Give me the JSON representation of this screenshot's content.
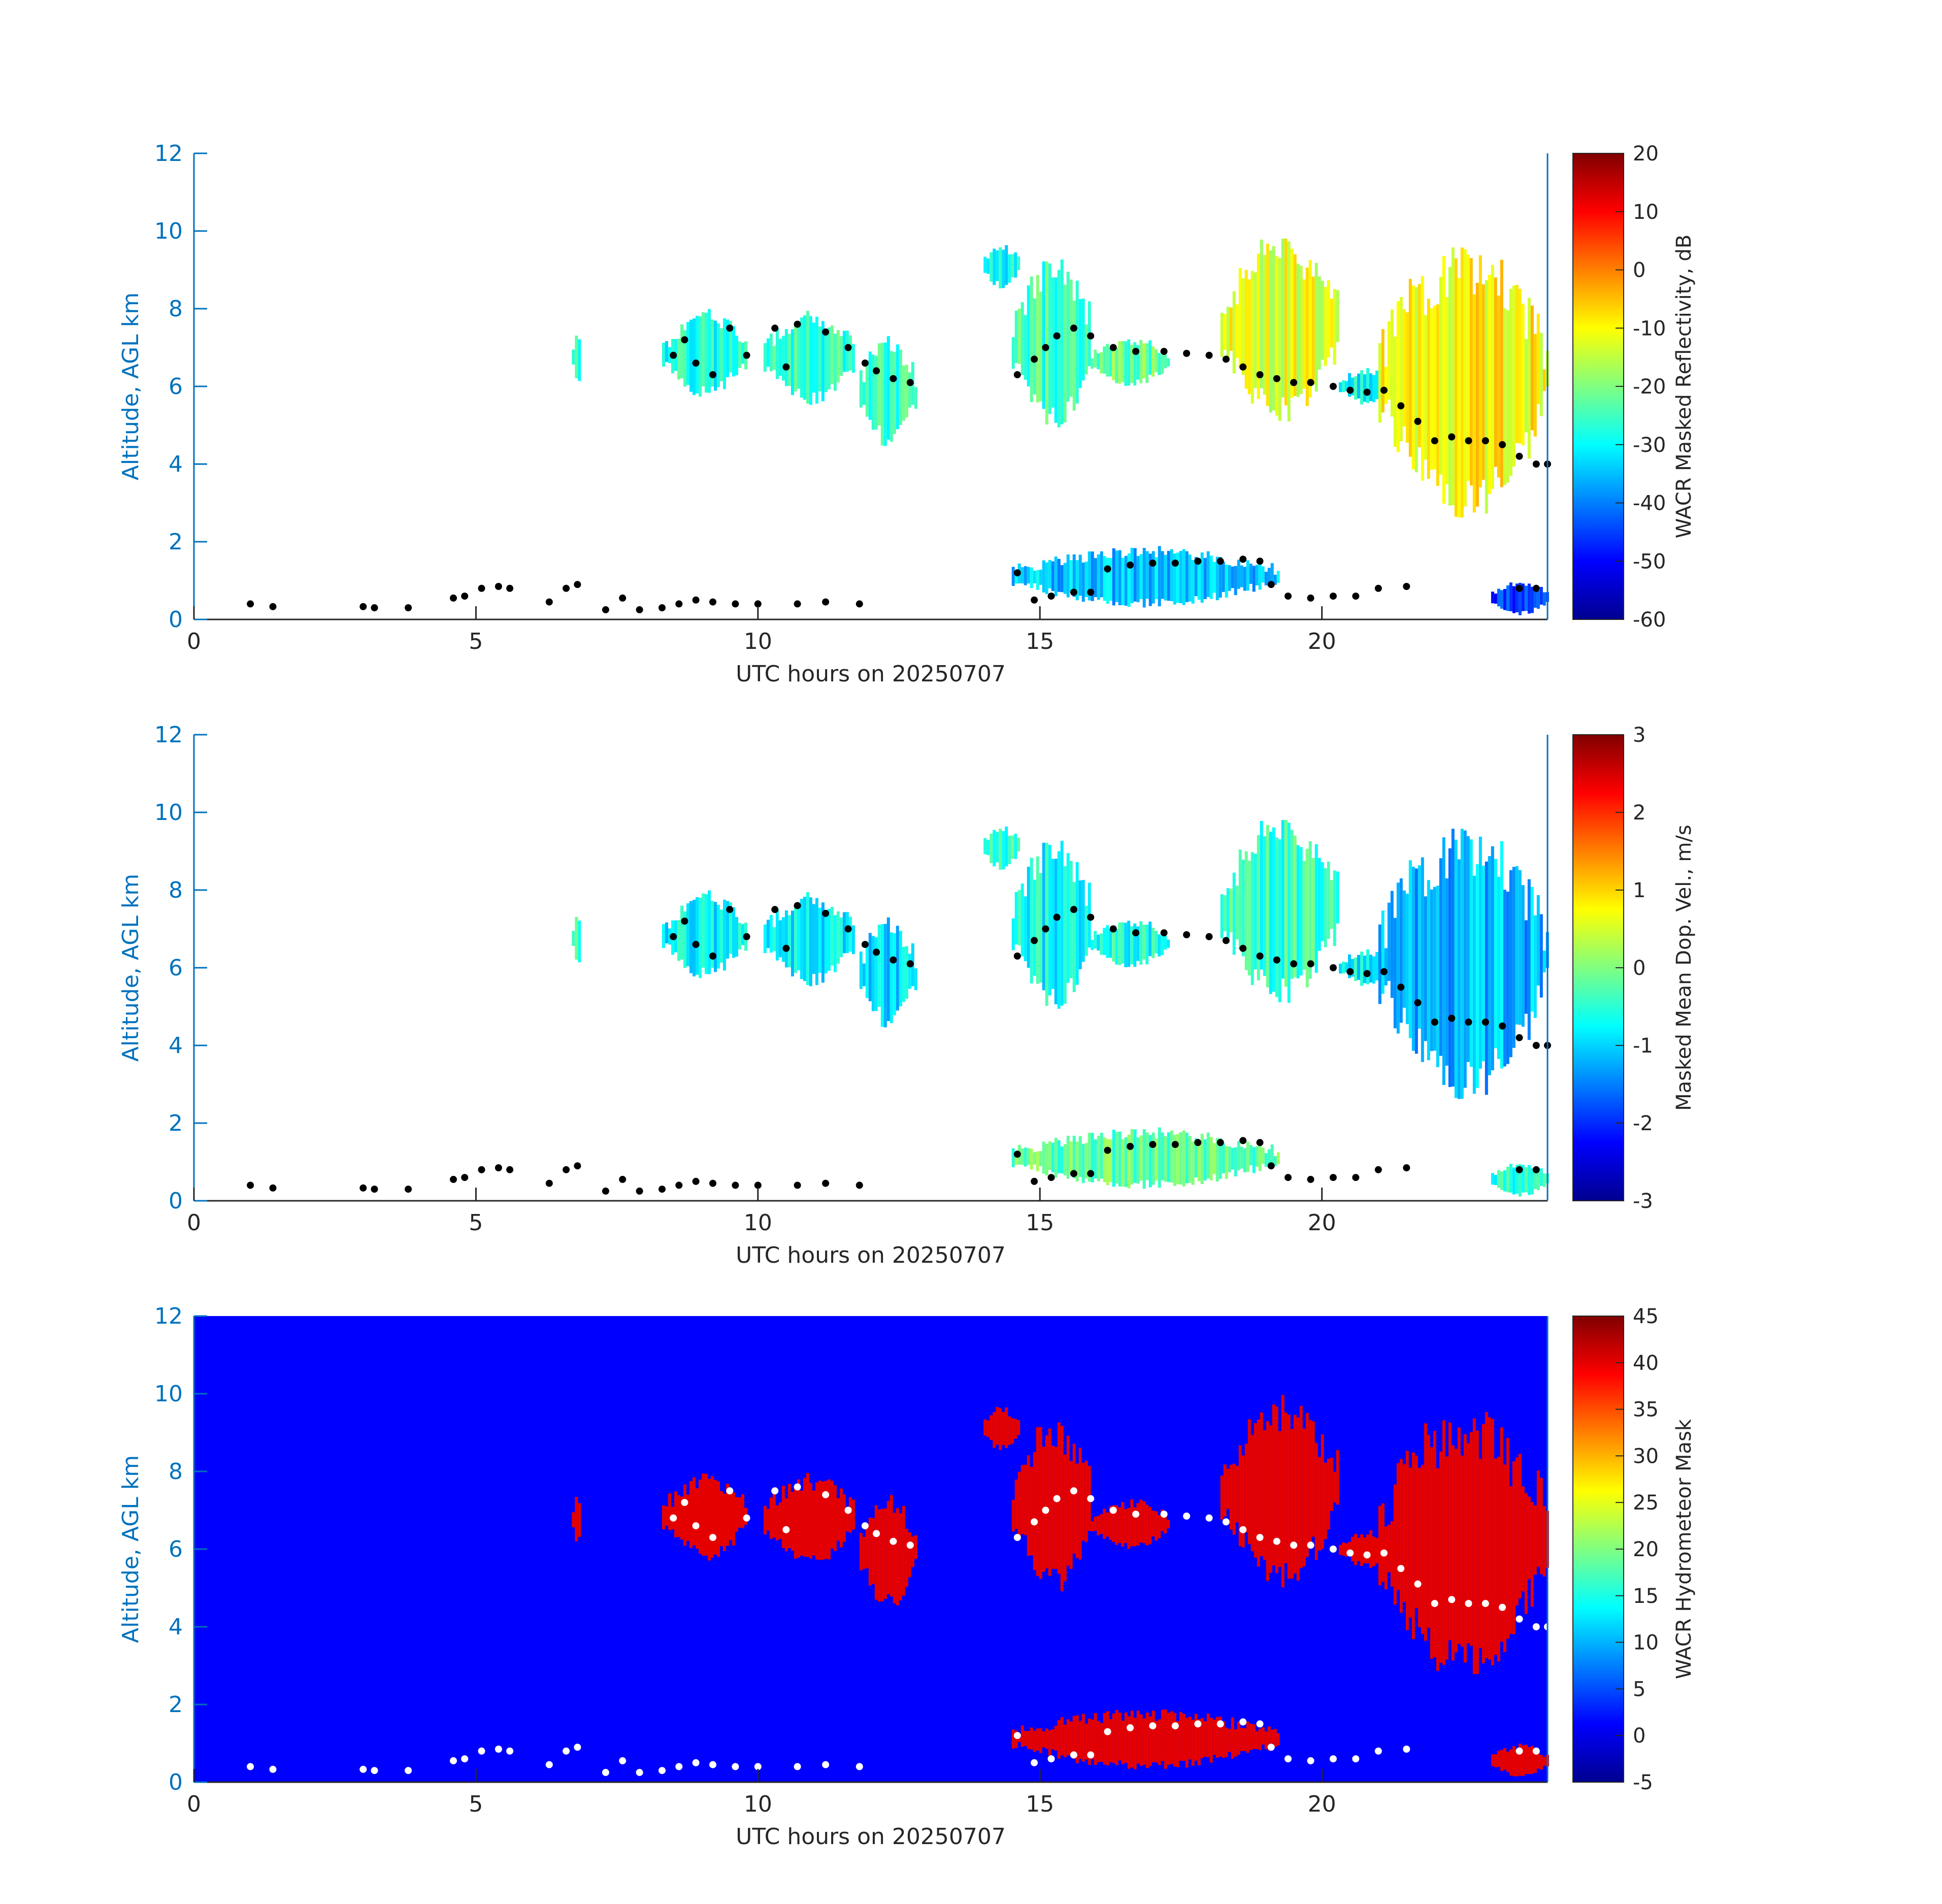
{
  "figure": {
    "panels": [
      {
        "id": "reflectivity",
        "ylabel": "Altitude, AGL km",
        "xlabel": "UTC hours on 20250707",
        "colorbar_label": "WACR Masked Reflectivity, dB",
        "colorbar_ticks": [
          "20",
          "10",
          "0",
          "-10",
          "-20",
          "-30",
          "-40",
          "-50",
          "-60"
        ],
        "background": "#ffffff",
        "marker_color": "#000000"
      },
      {
        "id": "velocity",
        "ylabel": "Altitude, AGL km",
        "xlabel": "UTC hours on 20250707",
        "colorbar_label": "Masked Mean Dop. Vel., m/s",
        "colorbar_ticks": [
          "3",
          "2",
          "1",
          "0",
          "-1",
          "-2",
          "-3"
        ],
        "background": "#ffffff",
        "marker_color": "#000000"
      },
      {
        "id": "mask",
        "ylabel": "Altitude, AGL km",
        "xlabel": "UTC hours on 20250707",
        "colorbar_label": "WACR Hydrometeor Mask",
        "colorbar_ticks": [
          "45",
          "40",
          "35",
          "30",
          "25",
          "20",
          "15",
          "10",
          "5",
          "0",
          "-5"
        ],
        "background": "#0000ff",
        "marker_color": "#ffffff"
      }
    ]
  },
  "chart_data": [
    {
      "type": "heatmap",
      "title": "",
      "xlabel": "UTC hours on 20250707",
      "ylabel": "Altitude, AGL km",
      "xlim": [
        0,
        24
      ],
      "ylim": [
        0,
        12
      ],
      "xticks": [
        "0",
        "5",
        "10",
        "15",
        "20"
      ],
      "yticks": [
        "0",
        "2",
        "4",
        "6",
        "8",
        "10",
        "12"
      ],
      "colorbar": {
        "label": "WACR Masked Reflectivity, dB",
        "range": [
          -60,
          20
        ],
        "colormap": "jet"
      },
      "cloud_regions": [
        {
          "x": [
            6.7,
            6.85
          ],
          "y": [
            6.0,
            7.6
          ],
          "value": -28
        },
        {
          "x": [
            8.3,
            9.8
          ],
          "y": [
            5.7,
            8.0
          ],
          "value": -28
        },
        {
          "x": [
            10.1,
            11.7
          ],
          "y": [
            5.5,
            8.0
          ],
          "value": -26
        },
        {
          "x": [
            11.8,
            12.8
          ],
          "y": [
            4.4,
            7.4
          ],
          "value": -25
        },
        {
          "x": [
            14.0,
            14.6
          ],
          "y": [
            8.5,
            9.7
          ],
          "value": -30
        },
        {
          "x": [
            14.5,
            15.9
          ],
          "y": [
            4.8,
            9.5
          ],
          "value": -25
        },
        {
          "x": [
            15.9,
            17.3
          ],
          "y": [
            6.0,
            7.3
          ],
          "value": -22
        },
        {
          "x": [
            18.2,
            20.3
          ],
          "y": [
            5.0,
            10.0
          ],
          "value": -12
        },
        {
          "x": [
            20.3,
            21.3
          ],
          "y": [
            5.5,
            6.5
          ],
          "value": -30
        },
        {
          "x": [
            21.0,
            24.0
          ],
          "y": [
            2.5,
            9.8
          ],
          "value": -10
        },
        {
          "x": [
            14.5,
            19.2
          ],
          "y": [
            0.3,
            1.9
          ],
          "value": -35
        },
        {
          "x": [
            23.0,
            24.0
          ],
          "y": [
            0.1,
            1.0
          ],
          "value": -45
        }
      ],
      "marker_series": [
        {
          "x": [
            1.0,
            1.4,
            3.0,
            3.2,
            3.8,
            4.6,
            4.8,
            5.1,
            5.4,
            5.6,
            6.3,
            6.6,
            6.8,
            7.3,
            7.6,
            7.9,
            8.3,
            8.6,
            8.9,
            9.2,
            9.6,
            10.0,
            10.7,
            11.2,
            11.8
          ],
          "y": [
            0.4,
            0.33,
            0.33,
            0.3,
            0.3,
            0.55,
            0.6,
            0.8,
            0.85,
            0.8,
            0.45,
            0.8,
            0.9,
            0.25,
            0.55,
            0.25,
            0.3,
            0.4,
            0.5,
            0.45,
            0.4,
            0.4,
            0.4,
            0.45,
            0.4
          ]
        },
        {
          "x": [
            8.5,
            8.7,
            8.9,
            9.2,
            9.5,
            9.8,
            10.3,
            10.5,
            10.7,
            11.2,
            11.6,
            11.9,
            12.1,
            12.4,
            12.7
          ],
          "y": [
            6.8,
            7.2,
            6.6,
            6.3,
            7.5,
            6.8,
            7.5,
            6.5,
            7.6,
            7.4,
            7.0,
            6.6,
            6.4,
            6.2,
            6.1
          ]
        },
        {
          "x": [
            14.6,
            14.9,
            15.1,
            15.3,
            15.6,
            15.9,
            16.3,
            16.7,
            17.2,
            17.6,
            18.0,
            18.3,
            18.6,
            18.9,
            19.2,
            19.5,
            19.8,
            20.2,
            20.5,
            20.8,
            21.1,
            21.4,
            21.7,
            22.0,
            22.3,
            22.6,
            22.9,
            23.2,
            23.5,
            23.8,
            24.0
          ],
          "y": [
            6.3,
            6.7,
            7.0,
            7.3,
            7.5,
            7.3,
            7.0,
            6.9,
            6.9,
            6.85,
            6.8,
            6.7,
            6.5,
            6.3,
            6.2,
            6.1,
            6.1,
            6.0,
            5.9,
            5.85,
            5.9,
            5.5,
            5.1,
            4.6,
            4.7,
            4.6,
            4.6,
            4.5,
            4.2,
            4.0,
            4.0
          ]
        },
        {
          "x": [
            14.6,
            14.9,
            15.2,
            15.6,
            15.9,
            16.2,
            16.6,
            17.0,
            17.4,
            17.8,
            18.2,
            18.6,
            18.9,
            19.1,
            19.4,
            19.8,
            20.2,
            20.6,
            21.0,
            21.5,
            23.5,
            23.8
          ],
          "y": [
            1.2,
            0.5,
            0.6,
            0.7,
            0.7,
            1.3,
            1.4,
            1.45,
            1.45,
            1.5,
            1.5,
            1.55,
            1.5,
            0.9,
            0.6,
            0.55,
            0.6,
            0.6,
            0.8,
            0.85,
            0.8,
            0.8
          ]
        }
      ]
    },
    {
      "type": "heatmap",
      "title": "",
      "xlabel": "UTC hours on 20250707",
      "ylabel": "Altitude, AGL km",
      "xlim": [
        0,
        24
      ],
      "ylim": [
        0,
        12
      ],
      "xticks": [
        "0",
        "5",
        "10",
        "15",
        "20"
      ],
      "yticks": [
        "0",
        "2",
        "4",
        "6",
        "8",
        "10",
        "12"
      ],
      "colorbar": {
        "label": "Masked Mean Dop. Vel., m/s",
        "range": [
          -3,
          3
        ],
        "colormap": "jet"
      },
      "cloud_regions": [
        {
          "x": [
            6.7,
            6.85
          ],
          "y": [
            6.0,
            7.6
          ],
          "value": -0.5
        },
        {
          "x": [
            8.3,
            9.8
          ],
          "y": [
            5.7,
            8.0
          ],
          "value": -0.8
        },
        {
          "x": [
            10.1,
            11.7
          ],
          "y": [
            5.5,
            8.0
          ],
          "value": -0.8
        },
        {
          "x": [
            11.8,
            12.8
          ],
          "y": [
            4.4,
            7.4
          ],
          "value": -0.9
        },
        {
          "x": [
            14.0,
            14.6
          ],
          "y": [
            8.5,
            9.7
          ],
          "value": -0.5
        },
        {
          "x": [
            14.5,
            15.9
          ],
          "y": [
            4.8,
            9.5
          ],
          "value": -0.7
        },
        {
          "x": [
            15.9,
            17.3
          ],
          "y": [
            6.0,
            7.3
          ],
          "value": -0.6
        },
        {
          "x": [
            18.2,
            20.3
          ],
          "y": [
            5.0,
            10.0
          ],
          "value": -0.4
        },
        {
          "x": [
            20.3,
            21.3
          ],
          "y": [
            5.5,
            6.5
          ],
          "value": -0.8
        },
        {
          "x": [
            21.0,
            24.0
          ],
          "y": [
            2.5,
            9.8
          ],
          "value": -1.2
        },
        {
          "x": [
            14.5,
            19.2
          ],
          "y": [
            0.3,
            1.9
          ],
          "value": -0.2
        },
        {
          "x": [
            23.0,
            24.0
          ],
          "y": [
            0.1,
            1.0
          ],
          "value": -0.5
        }
      ],
      "marker_series": "same as panel 1"
    },
    {
      "type": "heatmap",
      "title": "",
      "xlabel": "UTC hours on 20250707",
      "ylabel": "Altitude, AGL km",
      "xlim": [
        0,
        24
      ],
      "ylim": [
        0,
        12
      ],
      "xticks": [
        "0",
        "5",
        "10",
        "15",
        "20"
      ],
      "yticks": [
        "0",
        "2",
        "4",
        "6",
        "8",
        "10",
        "12"
      ],
      "colorbar": {
        "label": "WACR Hydrometeor Mask",
        "range": [
          -5,
          45
        ],
        "colormap": "jet"
      },
      "background_value": 0,
      "cloud_value": 40,
      "cloud_regions": "same extents as panel 1",
      "marker_series": "same as panel 1"
    }
  ]
}
